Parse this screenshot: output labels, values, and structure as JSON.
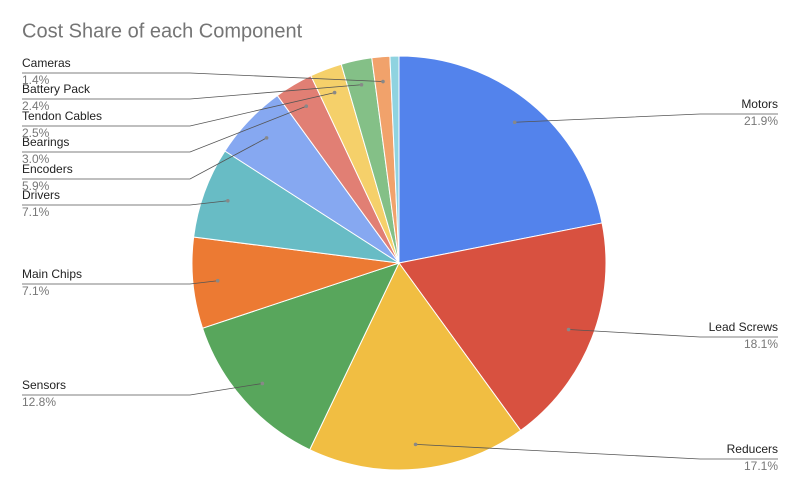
{
  "chart_data": {
    "type": "pie",
    "title": "Cost Share of each Component",
    "categories": [
      "Motors",
      "Lead Screws",
      "Reducers",
      "Sensors",
      "Main Chips",
      "Drivers",
      "Encoders",
      "Bearings",
      "Tendon Cables",
      "Battery Pack",
      "Cameras",
      null
    ],
    "values": [
      21.9,
      18.1,
      17.1,
      12.8,
      7.1,
      7.1,
      5.9,
      3.0,
      2.5,
      2.4,
      1.4,
      0.7
    ],
    "value_labels": [
      "21.9%",
      "18.1%",
      "17.1%",
      "12.8%",
      "7.1%",
      "7.1%",
      "5.9%",
      "3.0%",
      "2.5%",
      "2.4%",
      "1.4%",
      null
    ],
    "colors": [
      "#5383ec",
      "#d85140",
      "#f1be42",
      "#58a65c",
      "#ec7a33",
      "#68bcc5",
      "#86a8f1",
      "#e17f74",
      "#f5d06a",
      "#84c087",
      "#f1a26b",
      "#8fd3e0"
    ]
  }
}
